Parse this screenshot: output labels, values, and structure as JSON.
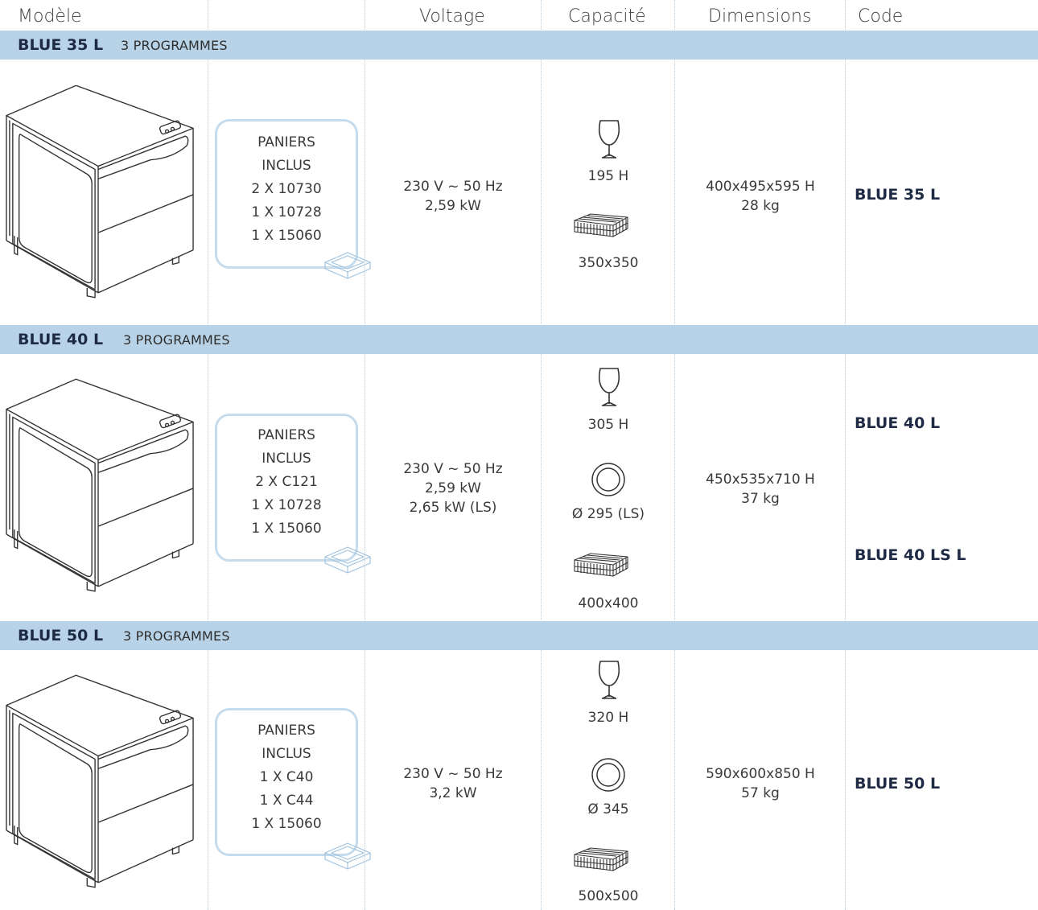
{
  "headers": {
    "model": "Modèle",
    "voltage": "Voltage",
    "capacity": "Capacité",
    "dimensions": "Dimensions",
    "code": "Code"
  },
  "rows": [
    {
      "name": "BLUE 35 L",
      "programs": "3 PROGRAMMES",
      "baskets": [
        "PANIERS",
        "INCLUS",
        "2 X 10730",
        "1 X 10728",
        "1 X 15060"
      ],
      "voltage": [
        "230 V ~ 50 Hz",
        "2,59 kW"
      ],
      "glass_height": "195 H",
      "rack_size": "350x350",
      "dimensions": "400x495x595 H",
      "weight": "28 kg",
      "codes": [
        "BLUE 35 L"
      ]
    },
    {
      "name": "BLUE 40 L",
      "programs": "3 PROGRAMMES",
      "baskets": [
        "PANIERS",
        "INCLUS",
        "2 X C121",
        "1 X 10728",
        "1 X 15060"
      ],
      "voltage": [
        "230 V ~ 50 Hz",
        "2,59 kW",
        "2,65 kW (LS)"
      ],
      "glass_height": "305 H",
      "plate": "Ø 295 (LS)",
      "rack_size": "400x400",
      "dimensions": "450x535x710 H",
      "weight": "37 kg",
      "codes": [
        "BLUE 40 L",
        "BLUE 40 LS L"
      ]
    },
    {
      "name": "BLUE 50 L",
      "programs": "3 PROGRAMMES",
      "baskets": [
        "PANIERS",
        "INCLUS",
        "1 X C40",
        "1 X C44",
        "1 X 15060"
      ],
      "voltage": [
        "230 V ~ 50 Hz",
        "3,2 kW"
      ],
      "glass_height": "320 H",
      "plate": "Ø 345",
      "rack_size": "500x500",
      "dimensions": "590x600x850 H",
      "weight": "57 kg",
      "codes": [
        "BLUE 50 L"
      ]
    }
  ],
  "icons": {
    "dishwasher": "dishwasher-icon",
    "basket": "basket-tray-icon",
    "glass": "wine-glass-icon",
    "plate": "plate-icon",
    "rack": "rack-icon"
  },
  "colors": {
    "band": "#b8d3e7",
    "code_text": "#1f2b44",
    "basket_border": "#c6dcec"
  }
}
